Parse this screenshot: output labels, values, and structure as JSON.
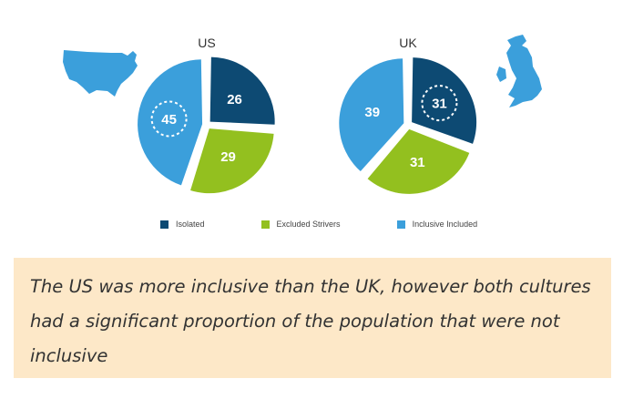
{
  "colors": {
    "isolated": "#0d4a73",
    "excluded_strivers": "#93c01f",
    "inclusive_included": "#3b9fdb"
  },
  "icons": [
    "us-map-icon",
    "uk-map-icon"
  ],
  "chart_data": [
    {
      "type": "pie",
      "title": "US",
      "categories": [
        "Isolated",
        "Excluded Strivers",
        "Inclusive Included"
      ],
      "values": [
        26,
        29,
        45
      ],
      "highlighted": "Inclusive Included"
    },
    {
      "type": "pie",
      "title": "UK",
      "categories": [
        "Isolated",
        "Excluded Strivers",
        "Inclusive Included"
      ],
      "values": [
        31,
        31,
        39
      ],
      "highlighted": "Isolated"
    }
  ],
  "legend": {
    "placement": "bottom",
    "items": [
      {
        "label": "Isolated",
        "color": "#0d4a73"
      },
      {
        "label": "Excluded Strivers",
        "color": "#93c01f"
      },
      {
        "label": "Inclusive Included",
        "color": "#3b9fdb"
      }
    ]
  },
  "callout": {
    "text": "The US was more inclusive than the UK, however both cultures had a significant proportion of the population that were not inclusive"
  }
}
